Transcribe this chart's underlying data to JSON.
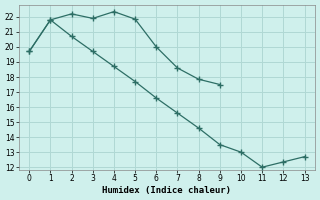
{
  "xlabel": "Humidex (Indice chaleur)",
  "background_color": "#cff0ec",
  "grid_color": "#b0d8d4",
  "line_color": "#2d6e65",
  "series1_x": [
    0,
    1,
    2,
    3,
    4,
    5,
    6,
    7,
    8,
    9
  ],
  "series1_y": [
    19.7,
    21.8,
    22.2,
    21.9,
    22.35,
    21.85,
    20.0,
    18.6,
    17.85,
    17.5
  ],
  "series2_x": [
    0,
    1,
    2,
    3,
    4,
    5,
    6,
    7,
    8,
    9,
    10,
    11,
    12,
    13
  ],
  "series2_y": [
    19.7,
    21.8,
    20.7,
    19.7,
    18.7,
    17.7,
    16.6,
    15.6,
    14.6,
    13.5,
    13.0,
    12.0,
    12.35,
    12.7
  ],
  "ylim_min": 11.8,
  "ylim_max": 22.8,
  "xlim_min": -0.5,
  "xlim_max": 13.5,
  "yticks": [
    12,
    13,
    14,
    15,
    16,
    17,
    18,
    19,
    20,
    21,
    22
  ],
  "xticks": [
    0,
    1,
    2,
    3,
    4,
    5,
    6,
    7,
    8,
    9,
    10,
    11,
    12,
    13
  ]
}
